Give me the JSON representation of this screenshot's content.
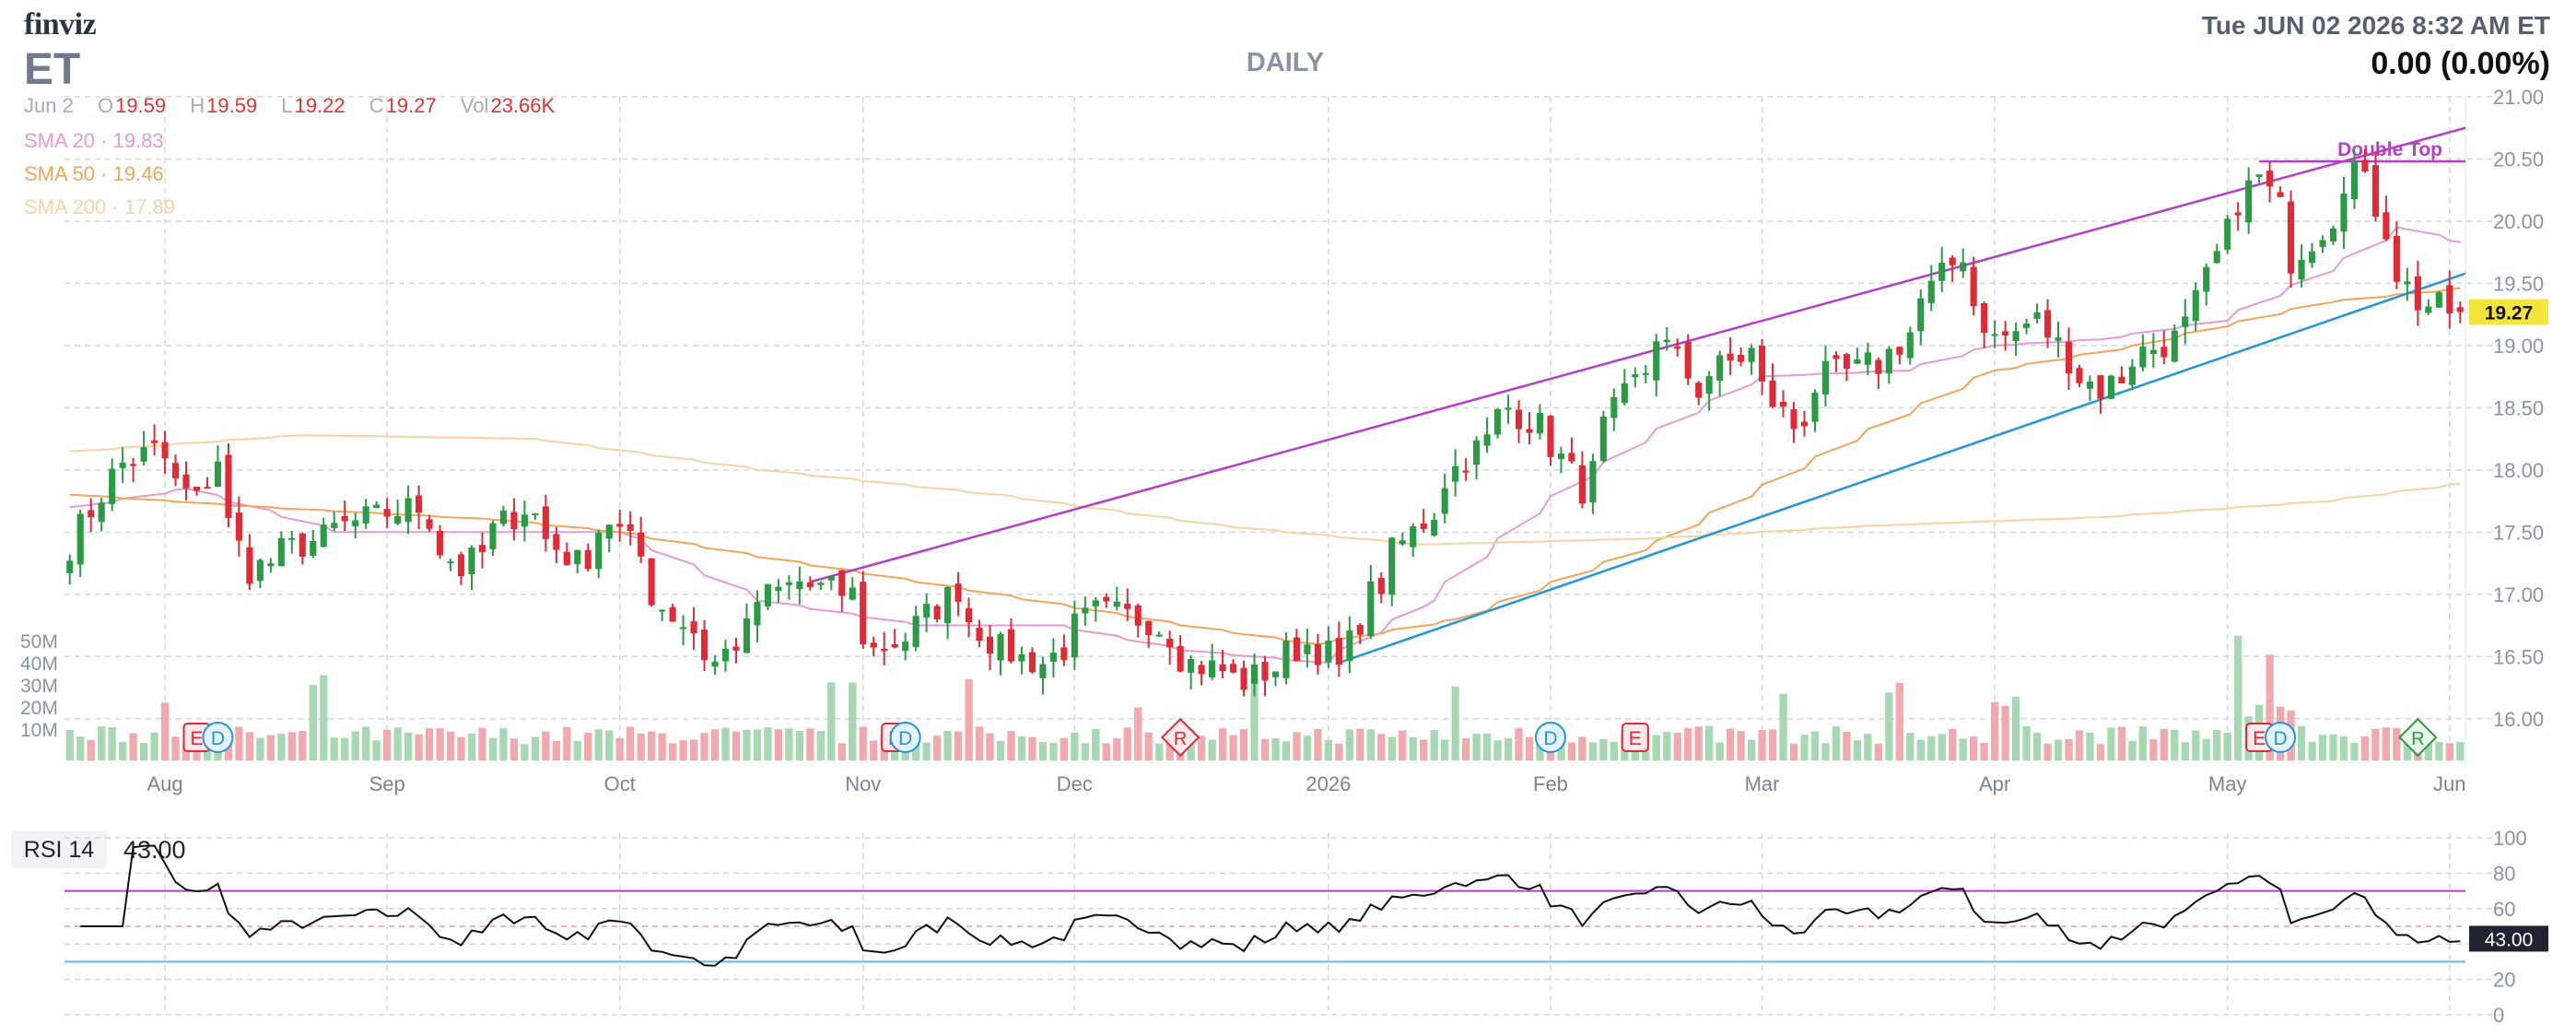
{
  "header": {
    "brand": "finviz",
    "ticker": "ET",
    "period": "DAILY",
    "datetime": "Tue JUN 02 2026 8:32 AM ET",
    "change": "0.00 (0.00%)"
  },
  "ohlc": {
    "date": "Jun 2",
    "open_label": "O",
    "open": "19.59",
    "high_label": "H",
    "high": "19.59",
    "low_label": "L",
    "low": "19.22",
    "close_label": "C",
    "close": "19.27",
    "vol_label": "Vol",
    "vol": "23.66K"
  },
  "sma_legend": [
    {
      "label": "SMA 20",
      "value": "19.83",
      "color": "#e79ad8"
    },
    {
      "label": "SMA 50",
      "value": "19.46",
      "color": "#f5a55a"
    },
    {
      "label": "SMA 200",
      "value": "17.89",
      "color": "#f6d3a5"
    }
  ],
  "colors": {
    "up": "#2b9a45",
    "down": "#e12a36",
    "vol_up": "#a6d8b1",
    "vol_down": "#f2a9ae",
    "trendline_upper": "#b43ec8",
    "trendline_lower": "#2196d8",
    "rsi_line": "#111111",
    "rsi_upper": "#b43ec8",
    "rsi_lower": "#5cb8ee",
    "price_tag_bg": "#f4e53a"
  },
  "annotation": {
    "double_top": "Double Top"
  },
  "price_tag": "19.27",
  "rsi": {
    "label": "RSI 14",
    "value": "43.00",
    "tag": "43.00",
    "upper": 70,
    "lower": 30,
    "ticks": [
      "100",
      "80",
      "60",
      "40",
      "20",
      "0"
    ]
  },
  "chart_data": {
    "type": "candlestick",
    "price_axis": {
      "ticks": [
        "21.00",
        "20.50",
        "20.00",
        "19.50",
        "19.00",
        "18.50",
        "18.00",
        "17.50",
        "17.00",
        "16.50",
        "16.00"
      ],
      "ylim": [
        15.85,
        21.0
      ]
    },
    "volume_axis": {
      "ticks": [
        "50M",
        "40M",
        "30M",
        "20M",
        "10M"
      ]
    },
    "x_labels": [
      "Aug",
      "Sep",
      "Oct",
      "Nov",
      "Dec",
      "2026",
      "Feb",
      "Mar",
      "Apr",
      "May",
      "Jun"
    ],
    "anchors": [
      {
        "date": "2025-07-21",
        "close": 17.4
      },
      {
        "date": "2025-07-25",
        "close": 17.95
      },
      {
        "date": "2025-07-31",
        "close": 18.15
      },
      {
        "date": "2025-08-06",
        "close": 17.75
      },
      {
        "date": "2025-08-08",
        "close": 18.1
      },
      {
        "date": "2025-08-13",
        "close": 17.2
      },
      {
        "date": "2025-08-20",
        "close": 17.4
      },
      {
        "date": "2025-08-28",
        "close": 17.6
      },
      {
        "date": "2025-09-04",
        "close": 17.7
      },
      {
        "date": "2025-09-10",
        "close": 17.2
      },
      {
        "date": "2025-09-18",
        "close": 17.7
      },
      {
        "date": "2025-09-25",
        "close": 17.25
      },
      {
        "date": "2025-09-30",
        "close": 17.6
      },
      {
        "date": "2025-10-07",
        "close": 16.9
      },
      {
        "date": "2025-10-14",
        "close": 16.45
      },
      {
        "date": "2025-10-20",
        "close": 16.95
      },
      {
        "date": "2025-10-24",
        "close": 17.1
      },
      {
        "date": "2025-10-31",
        "close": 17.0
      },
      {
        "date": "2025-11-04",
        "close": 16.55
      },
      {
        "date": "2025-11-10",
        "close": 16.75
      },
      {
        "date": "2025-11-14",
        "close": 17.05
      },
      {
        "date": "2025-11-20",
        "close": 16.55
      },
      {
        "date": "2025-11-26",
        "close": 16.45
      },
      {
        "date": "2025-12-03",
        "close": 16.85
      },
      {
        "date": "2025-12-10",
        "close": 16.8
      },
      {
        "date": "2025-12-16",
        "close": 16.45
      },
      {
        "date": "2025-12-23",
        "close": 16.3
      },
      {
        "date": "2025-12-31",
        "close": 16.6
      },
      {
        "date": "2026-01-05",
        "close": 16.4
      },
      {
        "date": "2026-01-08",
        "close": 17.0
      },
      {
        "date": "2026-01-14",
        "close": 17.5
      },
      {
        "date": "2026-01-21",
        "close": 18.1
      },
      {
        "date": "2026-01-27",
        "close": 18.5
      },
      {
        "date": "2026-02-02",
        "close": 18.2
      },
      {
        "date": "2026-02-05",
        "close": 17.85
      },
      {
        "date": "2026-02-12",
        "close": 18.7
      },
      {
        "date": "2026-02-16",
        "close": 19.1
      },
      {
        "date": "2026-02-20",
        "close": 18.65
      },
      {
        "date": "2026-02-27",
        "close": 18.95
      },
      {
        "date": "2026-03-05",
        "close": 18.35
      },
      {
        "date": "2026-03-10",
        "close": 18.75
      },
      {
        "date": "2026-03-17",
        "close": 18.85
      },
      {
        "date": "2026-03-24",
        "close": 19.45
      },
      {
        "date": "2026-03-27",
        "close": 19.75
      },
      {
        "date": "2026-04-01",
        "close": 19.05
      },
      {
        "date": "2026-04-07",
        "close": 19.2
      },
      {
        "date": "2026-04-10",
        "close": 18.9
      },
      {
        "date": "2026-04-15",
        "close": 18.65
      },
      {
        "date": "2026-04-21",
        "close": 18.95
      },
      {
        "date": "2026-04-27",
        "close": 19.15
      },
      {
        "date": "2026-05-01",
        "close": 19.9
      },
      {
        "date": "2026-05-06",
        "close": 20.35
      },
      {
        "date": "2026-05-11",
        "close": 19.7
      },
      {
        "date": "2026-05-14",
        "close": 19.95
      },
      {
        "date": "2026-05-19",
        "close": 20.45
      },
      {
        "date": "2026-05-22",
        "close": 19.95
      },
      {
        "date": "2026-05-27",
        "close": 19.35
      },
      {
        "date": "2026-05-29",
        "close": 19.3
      },
      {
        "date": "2026-06-02",
        "close": 19.27
      }
    ],
    "sma_lines": [
      {
        "name": "SMA 20",
        "points": [
          {
            "date": "2025-07-21",
            "value": 17.7
          },
          {
            "date": "2025-08-05",
            "value": 17.85
          },
          {
            "date": "2025-08-25",
            "value": 17.5
          },
          {
            "date": "2025-09-15",
            "value": 17.5
          },
          {
            "date": "2025-10-01",
            "value": 17.5
          },
          {
            "date": "2025-10-20",
            "value": 16.95
          },
          {
            "date": "2025-11-10",
            "value": 16.75
          },
          {
            "date": "2025-11-28",
            "value": 16.75
          },
          {
            "date": "2025-12-15",
            "value": 16.55
          },
          {
            "date": "2026-01-02",
            "value": 16.45
          },
          {
            "date": "2026-01-15",
            "value": 16.9
          },
          {
            "date": "2026-02-01",
            "value": 17.75
          },
          {
            "date": "2026-02-15",
            "value": 18.3
          },
          {
            "date": "2026-03-01",
            "value": 18.75
          },
          {
            "date": "2026-03-20",
            "value": 18.8
          },
          {
            "date": "2026-04-01",
            "value": 19.0
          },
          {
            "date": "2026-04-15",
            "value": 19.05
          },
          {
            "date": "2026-05-01",
            "value": 19.2
          },
          {
            "date": "2026-05-15",
            "value": 19.6
          },
          {
            "date": "2026-05-25",
            "value": 19.95
          },
          {
            "date": "2026-06-02",
            "value": 19.83
          }
        ]
      },
      {
        "name": "SMA 50",
        "points": [
          {
            "date": "2025-07-21",
            "value": 17.8
          },
          {
            "date": "2025-08-15",
            "value": 17.7
          },
          {
            "date": "2025-09-15",
            "value": 17.6
          },
          {
            "date": "2025-10-01",
            "value": 17.5
          },
          {
            "date": "2025-10-20",
            "value": 17.3
          },
          {
            "date": "2025-11-15",
            "value": 17.05
          },
          {
            "date": "2025-12-15",
            "value": 16.75
          },
          {
            "date": "2026-01-01",
            "value": 16.6
          },
          {
            "date": "2026-01-20",
            "value": 16.8
          },
          {
            "date": "2026-02-15",
            "value": 17.4
          },
          {
            "date": "2026-03-15",
            "value": 18.3
          },
          {
            "date": "2026-04-01",
            "value": 18.8
          },
          {
            "date": "2026-04-20",
            "value": 19.0
          },
          {
            "date": "2026-05-15",
            "value": 19.35
          },
          {
            "date": "2026-06-02",
            "value": 19.46
          }
        ]
      },
      {
        "name": "SMA 200",
        "points": [
          {
            "date": "2025-07-21",
            "value": 18.15
          },
          {
            "date": "2025-08-20",
            "value": 18.28
          },
          {
            "date": "2025-09-20",
            "value": 18.25
          },
          {
            "date": "2025-10-20",
            "value": 18.0
          },
          {
            "date": "2025-11-20",
            "value": 17.8
          },
          {
            "date": "2025-12-20",
            "value": 17.55
          },
          {
            "date": "2026-01-15",
            "value": 17.4
          },
          {
            "date": "2026-02-15",
            "value": 17.45
          },
          {
            "date": "2026-03-15",
            "value": 17.55
          },
          {
            "date": "2026-04-15",
            "value": 17.62
          },
          {
            "date": "2026-05-15",
            "value": 17.75
          },
          {
            "date": "2026-06-02",
            "value": 17.89
          }
        ]
      }
    ],
    "trendlines": [
      {
        "name": "upper",
        "from": {
          "date": "2025-10-27",
          "value": 17.1
        },
        "to": {
          "date": "2026-06-03",
          "value": 20.75
        }
      },
      {
        "name": "lower",
        "from": {
          "date": "2026-01-05",
          "value": 16.45
        },
        "to": {
          "date": "2026-06-03",
          "value": 19.58
        }
      },
      {
        "name": "double_top",
        "from": {
          "date": "2026-05-06",
          "value": 20.48
        },
        "to": {
          "date": "2026-06-03",
          "value": 20.48
        }
      }
    ],
    "events": [
      {
        "date": "2025-08-06",
        "label": "E",
        "kind": "earnings"
      },
      {
        "date": "2025-08-08",
        "label": "D",
        "kind": "dividend"
      },
      {
        "date": "2025-11-06",
        "label": "E",
        "kind": "earnings"
      },
      {
        "date": "2025-11-07",
        "label": "D",
        "kind": "dividend"
      },
      {
        "date": "2025-12-15",
        "label": "R",
        "kind": "rating"
      },
      {
        "date": "2026-02-02",
        "label": "D",
        "kind": "dividend"
      },
      {
        "date": "2026-02-12",
        "label": "E",
        "kind": "earnings"
      },
      {
        "date": "2026-05-06",
        "label": "E",
        "kind": "earnings"
      },
      {
        "date": "2026-05-08",
        "label": "D",
        "kind": "dividend"
      },
      {
        "date": "2026-05-27",
        "label": "R",
        "kind": "rating-up"
      }
    ]
  }
}
